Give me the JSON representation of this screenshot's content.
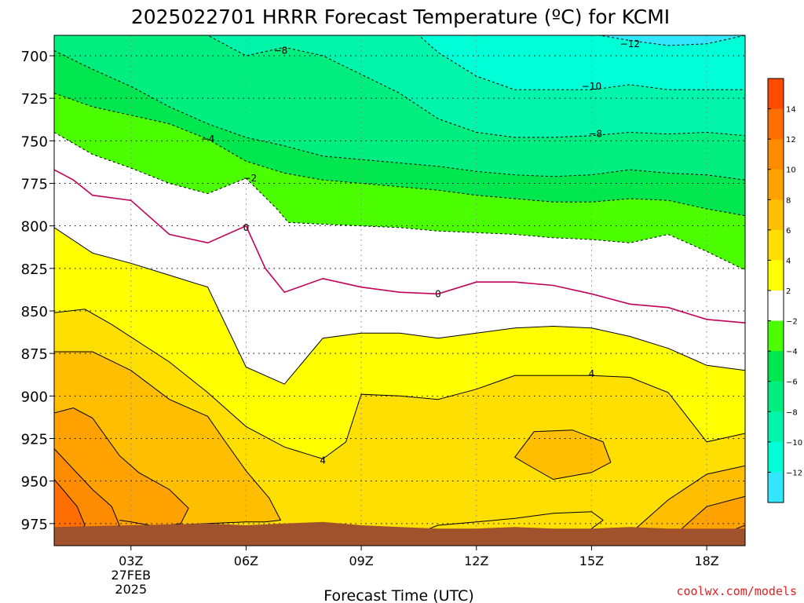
{
  "chart_data": {
    "type": "contour",
    "title": "2025022701 HRRR Forecast Temperature (ºC) for KCMI",
    "xlabel": "Forecast Time (UTC)",
    "ylabel": "",
    "y_axis": "pressure (hPa), inverted",
    "ylim": [
      688,
      988
    ],
    "x_range_hours": [
      1,
      19
    ],
    "x_ticks": [
      {
        "hour": 3,
        "label": "03Z",
        "sub": [
          "27FEB",
          "2025"
        ]
      },
      {
        "hour": 6,
        "label": "06Z"
      },
      {
        "hour": 9,
        "label": "09Z"
      },
      {
        "hour": 12,
        "label": "12Z"
      },
      {
        "hour": 15,
        "label": "15Z"
      },
      {
        "hour": 18,
        "label": "18Z"
      }
    ],
    "y_ticks": [
      700,
      725,
      750,
      775,
      800,
      825,
      850,
      875,
      900,
      925,
      950,
      975
    ],
    "grid": true,
    "colorbar": {
      "placement": "right",
      "levels": [
        -14,
        -12,
        -10,
        -8,
        -6,
        -4,
        -2,
        2,
        4,
        6,
        8,
        10,
        12,
        14,
        16
      ],
      "labels": [
        "14",
        "12",
        "10",
        "8",
        "6",
        "4",
        "2",
        "−2",
        "−4",
        "−6",
        "−8",
        "−10",
        "−12"
      ],
      "colors": {
        "lt_neg12": "#33e6ff",
        "neg12_neg10": "#00ffd6",
        "neg10_neg8": "#00f5aa",
        "neg8_neg6": "#00ee80",
        "neg6_neg4": "#00e64e",
        "neg4_neg2": "#4cff00",
        "neg2_2": "#ffffff",
        "2_4": "#ffff00",
        "4_6": "#ffdf00",
        "6_8": "#ffbe00",
        "8_10": "#ffa200",
        "10_12": "#ff8c00",
        "12_14": "#ff6e00",
        "gt_14": "#ff4a00"
      }
    },
    "ground_color": "#a0522d",
    "zero_line_color": "#c0005a",
    "contours": [
      {
        "level": -12,
        "points": [
          [
            7.8,
            688
          ],
          [
            9,
            688
          ],
          [
            10.5,
            688
          ],
          [
            11.5,
            688
          ],
          [
            12.5,
            688
          ],
          [
            13.5,
            688
          ],
          [
            14.5,
            688
          ],
          [
            15.2,
            688
          ],
          [
            16,
            691
          ],
          [
            17,
            694
          ],
          [
            18,
            693
          ],
          [
            19,
            688
          ]
        ]
      },
      {
        "level": -10,
        "points": [
          [
            1.0,
            688
          ],
          [
            2,
            688
          ],
          [
            3,
            688
          ],
          [
            4,
            688
          ],
          [
            4.5,
            688
          ],
          [
            5.5,
            688
          ],
          [
            6.5,
            688
          ],
          [
            9.5,
            688
          ],
          [
            10.5,
            688
          ],
          [
            11,
            698
          ],
          [
            12,
            712
          ],
          [
            13,
            720
          ],
          [
            14,
            720
          ],
          [
            15,
            720
          ],
          [
            16,
            717
          ],
          [
            17,
            720
          ],
          [
            18,
            720
          ],
          [
            19,
            720
          ]
        ]
      },
      {
        "level": -8,
        "points": [
          [
            1.0,
            688
          ],
          [
            2,
            688
          ],
          [
            3,
            688
          ],
          [
            4,
            688
          ],
          [
            5,
            688
          ],
          [
            6,
            700
          ],
          [
            7,
            695
          ],
          [
            8,
            700
          ],
          [
            9,
            711
          ],
          [
            10,
            722
          ],
          [
            11,
            737
          ],
          [
            12,
            745
          ],
          [
            13,
            748
          ],
          [
            14,
            748
          ],
          [
            15,
            747
          ],
          [
            16,
            745
          ],
          [
            17,
            746
          ],
          [
            18,
            745
          ],
          [
            19,
            747
          ]
        ]
      },
      {
        "level": -6,
        "points": [
          [
            1.0,
            697
          ],
          [
            2,
            708
          ],
          [
            3,
            718
          ],
          [
            4,
            730
          ],
          [
            5,
            740
          ],
          [
            6,
            748
          ],
          [
            7,
            753
          ],
          [
            8,
            759
          ],
          [
            9,
            761
          ],
          [
            10,
            763
          ],
          [
            11,
            765
          ],
          [
            12,
            768
          ],
          [
            13,
            770
          ],
          [
            14,
            771
          ],
          [
            15,
            770
          ],
          [
            16,
            767
          ],
          [
            17,
            769
          ],
          [
            18,
            770
          ],
          [
            19,
            773
          ]
        ]
      },
      {
        "level": -4,
        "points": [
          [
            1.0,
            722
          ],
          [
            2,
            730
          ],
          [
            3,
            735
          ],
          [
            4,
            740
          ],
          [
            5,
            749
          ],
          [
            6,
            762
          ],
          [
            7,
            769
          ],
          [
            8,
            773
          ],
          [
            9,
            775
          ],
          [
            10,
            777
          ],
          [
            11,
            779
          ],
          [
            12,
            782
          ],
          [
            13,
            784
          ],
          [
            14,
            786
          ],
          [
            15,
            786
          ],
          [
            16,
            784
          ],
          [
            17,
            785
          ],
          [
            18,
            790
          ],
          [
            19,
            794
          ]
        ]
      },
      {
        "level": -2,
        "points": [
          [
            1.0,
            745
          ],
          [
            2,
            758
          ],
          [
            3,
            766
          ],
          [
            4,
            775
          ],
          [
            5,
            781
          ],
          [
            6,
            772
          ],
          [
            6.8,
            790
          ],
          [
            7.1,
            798
          ],
          [
            8,
            799
          ],
          [
            9,
            800
          ],
          [
            10,
            801
          ],
          [
            11,
            803
          ],
          [
            12,
            804
          ],
          [
            13,
            805
          ],
          [
            14,
            807
          ],
          [
            15,
            808
          ],
          [
            16,
            810
          ],
          [
            17,
            805
          ],
          [
            18,
            815
          ],
          [
            19,
            826
          ]
        ]
      },
      {
        "level": 0,
        "points": [
          [
            1.0,
            767
          ],
          [
            1.5,
            773
          ],
          [
            2,
            782
          ],
          [
            3,
            785
          ],
          [
            4,
            805
          ],
          [
            5,
            810
          ],
          [
            6,
            800
          ],
          [
            6.5,
            825
          ],
          [
            7,
            839
          ],
          [
            8,
            831
          ],
          [
            9,
            836
          ],
          [
            10,
            839
          ],
          [
            11,
            840
          ],
          [
            12,
            833
          ],
          [
            13,
            833
          ],
          [
            14,
            835
          ],
          [
            15,
            840
          ],
          [
            16,
            846
          ],
          [
            17,
            848
          ],
          [
            18,
            855
          ],
          [
            19,
            857
          ]
        ]
      },
      {
        "level": 2,
        "points": [
          [
            1.0,
            801
          ],
          [
            2,
            816
          ],
          [
            3,
            822
          ],
          [
            4,
            829
          ],
          [
            5,
            836
          ],
          [
            6,
            883
          ],
          [
            7,
            893
          ],
          [
            8,
            866
          ],
          [
            9,
            863
          ],
          [
            10,
            863
          ],
          [
            11,
            866
          ],
          [
            12,
            863
          ],
          [
            13,
            860
          ],
          [
            14,
            859
          ],
          [
            15,
            860
          ],
          [
            16,
            865
          ],
          [
            17,
            872
          ],
          [
            18,
            882
          ],
          [
            19,
            885
          ]
        ]
      },
      {
        "level": 4,
        "points": [
          [
            1.0,
            851
          ],
          [
            1.8,
            849
          ],
          [
            2.5,
            858
          ],
          [
            4,
            880
          ],
          [
            5,
            898
          ],
          [
            6,
            918
          ],
          [
            7,
            930
          ],
          [
            8,
            937
          ],
          [
            8.6,
            927
          ],
          [
            9,
            899
          ],
          [
            10,
            900
          ],
          [
            11,
            902
          ],
          [
            12,
            896
          ],
          [
            13,
            888
          ],
          [
            14,
            888
          ],
          [
            15,
            888
          ],
          [
            16,
            889
          ],
          [
            17,
            898
          ],
          [
            18,
            927
          ],
          [
            19,
            922
          ]
        ]
      },
      {
        "level": 6,
        "points": [
          [
            1.0,
            874
          ],
          [
            2,
            874
          ],
          [
            3,
            885
          ],
          [
            4,
            902
          ],
          [
            5,
            912
          ],
          [
            5.4,
            925
          ],
          [
            6,
            944
          ],
          [
            6.6,
            960
          ],
          [
            6.9,
            973
          ],
          [
            6.5,
            974
          ],
          [
            6,
            974
          ],
          [
            5,
            975
          ],
          [
            4,
            976
          ],
          [
            3.5,
            976
          ],
          [
            3,
            974
          ],
          [
            2.7,
            973
          ]
        ]
      },
      {
        "level": 8,
        "points": [
          [
            1.0,
            910
          ],
          [
            1.5,
            907
          ],
          [
            2,
            913
          ],
          [
            2.7,
            935
          ],
          [
            3.2,
            945
          ],
          [
            4,
            955
          ],
          [
            4.5,
            966
          ],
          [
            4.3,
            975
          ],
          [
            4,
            976
          ],
          [
            3.5,
            978
          ],
          [
            3,
            980
          ],
          [
            2.3,
            981
          ],
          [
            2,
            982
          ],
          [
            1.5,
            983
          ],
          [
            1.0,
            983
          ]
        ]
      },
      {
        "level": 10,
        "points": [
          [
            1.0,
            931
          ],
          [
            1.5,
            943
          ],
          [
            2,
            955
          ],
          [
            2.5,
            965
          ],
          [
            2.7,
            976
          ],
          [
            2.2,
            980
          ],
          [
            1.7,
            982
          ],
          [
            1.0,
            983
          ]
        ]
      },
      {
        "level": 12,
        "points": [
          [
            1.0,
            949
          ],
          [
            1.3,
            957
          ],
          [
            1.6,
            965
          ],
          [
            1.8,
            976
          ],
          [
            1.6,
            980
          ],
          [
            1.0,
            982
          ]
        ]
      },
      {
        "level": 4,
        "closed": true,
        "points": [
          [
            13,
            936
          ],
          [
            13.5,
            921
          ],
          [
            14.5,
            920
          ],
          [
            15.3,
            927
          ],
          [
            15.5,
            939
          ],
          [
            15,
            945
          ],
          [
            14,
            949
          ],
          [
            13.3,
            940
          ],
          [
            13,
            936
          ]
        ]
      },
      {
        "level": 6,
        "points": [
          [
            14.3,
            986
          ],
          [
            15,
            987
          ],
          [
            16,
            981
          ],
          [
            17,
            961
          ],
          [
            18,
            946
          ],
          [
            19,
            941
          ]
        ]
      },
      {
        "level": 8,
        "points": [
          [
            16.5,
            987
          ],
          [
            17,
            985
          ],
          [
            18,
            965
          ],
          [
            19,
            959
          ]
        ]
      },
      {
        "level": 10,
        "points": [
          [
            17.5,
            986
          ],
          [
            18,
            985
          ],
          [
            19,
            976
          ]
        ]
      },
      {
        "level": 6,
        "closed": true,
        "points": [
          [
            6.6,
            980
          ],
          [
            7,
            978
          ],
          [
            7.1,
            982
          ],
          [
            6.6,
            983
          ],
          [
            6.6,
            980
          ]
        ]
      },
      {
        "level": 6,
        "points": [
          [
            10.2,
            983
          ],
          [
            11,
            976
          ],
          [
            12,
            974
          ],
          [
            13,
            972
          ],
          [
            14,
            969
          ],
          [
            15,
            968
          ],
          [
            15.3,
            973
          ],
          [
            15,
            978
          ],
          [
            14.5,
            984
          ],
          [
            14,
            988
          ]
        ]
      }
    ],
    "contour_labels": [
      {
        "text": "−8",
        "x": 6.9,
        "y": 697
      },
      {
        "text": "−12",
        "x": 16.0,
        "y": 693
      },
      {
        "text": "−10",
        "x": 15.0,
        "y": 718
      },
      {
        "text": "−8",
        "x": 15.1,
        "y": 746
      },
      {
        "text": "−4",
        "x": 5.0,
        "y": 749
      },
      {
        "text": "−2",
        "x": 6.1,
        "y": 772
      },
      {
        "text": "0",
        "x": 6.0,
        "y": 801
      },
      {
        "text": "0",
        "x": 11.0,
        "y": 840
      },
      {
        "text": "4",
        "x": 15.0,
        "y": 887
      },
      {
        "text": "4",
        "x": 8.0,
        "y": 938
      }
    ],
    "ground_surface": [
      [
        1.0,
        977
      ],
      [
        3,
        976
      ],
      [
        5,
        975
      ],
      [
        6,
        976
      ],
      [
        7,
        975
      ],
      [
        8,
        974
      ],
      [
        9,
        976
      ],
      [
        10,
        977
      ],
      [
        11,
        978
      ],
      [
        12,
        978
      ],
      [
        13,
        977
      ],
      [
        14,
        978
      ],
      [
        15,
        978
      ],
      [
        16,
        977
      ],
      [
        17,
        978
      ],
      [
        18,
        978
      ],
      [
        19,
        978
      ]
    ]
  },
  "credit": "coolwx.com/models"
}
